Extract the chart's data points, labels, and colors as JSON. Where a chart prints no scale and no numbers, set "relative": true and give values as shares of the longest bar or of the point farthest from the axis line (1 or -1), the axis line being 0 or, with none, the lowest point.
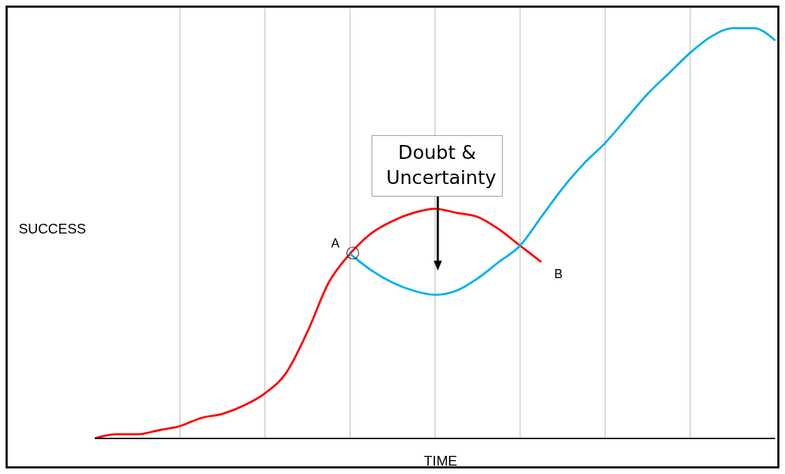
{
  "chart_data": {
    "type": "line",
    "xlabel": "TIME",
    "ylabel": "SUCCESS",
    "relative": true,
    "grid": "x",
    "categories": [
      null,
      null,
      null,
      null,
      null,
      null,
      null,
      null,
      null,
      null,
      null,
      null,
      null,
      null,
      null,
      null,
      null,
      null,
      null,
      null,
      null,
      null,
      null,
      null,
      null,
      null,
      null,
      null,
      null,
      null,
      null,
      null,
      null
    ],
    "series": [
      {
        "color": "#ff0000",
        "values": [
          0,
          0.01,
          0.01,
          0.02,
          0.03,
          0.05,
          0.06,
          0.08,
          0.11,
          0.16,
          0.26,
          0.38,
          0.45,
          0.5,
          0.53,
          0.55,
          0.56,
          0.55,
          0.54,
          0.51,
          0.47,
          0.43,
          null,
          null,
          null,
          null,
          null,
          null,
          null,
          null,
          null,
          null,
          null
        ]
      },
      {
        "color": "#00b0f0",
        "values": [
          null,
          null,
          null,
          null,
          null,
          null,
          null,
          null,
          null,
          null,
          null,
          null,
          0.45,
          0.41,
          0.38,
          0.36,
          0.35,
          0.36,
          0.39,
          0.43,
          0.47,
          0.54,
          0.61,
          0.67,
          0.72,
          0.78,
          0.84,
          0.89,
          0.94,
          0.98,
          1,
          1,
          0.97
        ]
      }
    ],
    "annotations": [
      "Doubt & Uncertainty",
      "A",
      "B"
    ]
  }
}
